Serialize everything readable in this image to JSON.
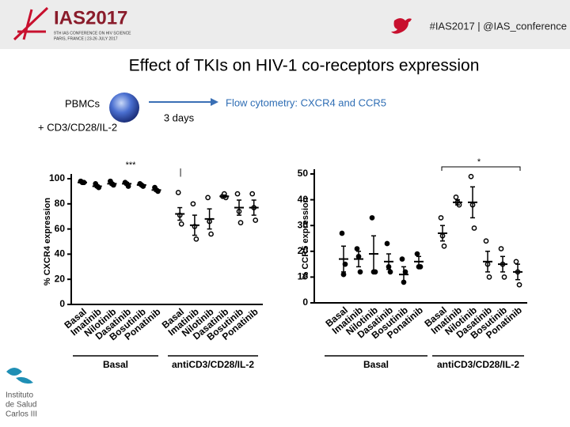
{
  "slide": {
    "logo": "IAS2017",
    "logo_line1": "9TH IAS CONFERENCE ON HIV SCIENCE",
    "logo_line2": "PARIS, FRANCE | 23-26 JULY 2017",
    "hashtag": "#IAS2017 | @IAS_conference",
    "title": "Effect of TKIs on HIV-1 co-receptors expression",
    "cells": "PBMCs",
    "stimulus": "+ CD3/CD28/IL-2",
    "duration": "3 days",
    "method": "Flow cytometry: CXCR4 and CCR5",
    "institute": [
      "Instituto",
      "de Salud",
      "Carlos III"
    ]
  },
  "chart_data": [
    {
      "type": "dot",
      "y_label": "% CXCR4 expression",
      "categories": [
        "Basal",
        "Imatinib",
        "Nilotinib",
        "Dasatinib",
        "Bosutinib",
        "Ponatinib",
        "Basal",
        "Imatinib",
        "Nilotinib",
        "Dasatinib",
        "Bosutinib",
        "Ponatinib"
      ],
      "groups": [
        "Basal",
        "antiCD3/CD28/IL-2"
      ],
      "points": [
        [
          98,
          97,
          97
        ],
        [
          96,
          94,
          93
        ],
        [
          98,
          96,
          95
        ],
        [
          97,
          96,
          94
        ],
        [
          96,
          95,
          94
        ],
        [
          93,
          91,
          90
        ],
        [
          89,
          71,
          64
        ],
        [
          80,
          62,
          52
        ],
        [
          85,
          66,
          56
        ],
        [
          86,
          88,
          85
        ],
        [
          88,
          74,
          65
        ],
        [
          88,
          77,
          67
        ]
      ],
      "mean": [
        97,
        94,
        96,
        96,
        95,
        91,
        72,
        63,
        68,
        86,
        77,
        77
      ],
      "error": [
        0.5,
        1,
        1,
        1,
        0.5,
        1,
        5,
        8,
        8,
        1,
        6,
        6
      ],
      "annotations": [
        "***",
        "|"
      ],
      "ylim": [
        0,
        100
      ],
      "yticks": [
        0,
        20,
        40,
        60,
        80,
        100
      ]
    },
    {
      "type": "dot",
      "y_label": "% CCR5 expression",
      "categories": [
        "Basal",
        "Imatinib",
        "Nilotinib",
        "Dasatinib",
        "Bosutinib",
        "Ponatinib",
        "Basal",
        "Imatinib",
        "Nilotinib",
        "Dasatinib",
        "Bosutinib",
        "Ponatinib"
      ],
      "groups": [
        "Basal",
        "antiCD3/CD28/IL-2"
      ],
      "points": [
        [
          27,
          11,
          15
        ],
        [
          21,
          18,
          12
        ],
        [
          33,
          12,
          12
        ],
        [
          23,
          14,
          12
        ],
        [
          17,
          8,
          12
        ],
        [
          19,
          14,
          14
        ],
        [
          33,
          26,
          22
        ],
        [
          41,
          39,
          38
        ],
        [
          49,
          38,
          29
        ],
        [
          24,
          15,
          10
        ],
        [
          21,
          15,
          10
        ],
        [
          16,
          12,
          7
        ]
      ],
      "mean": [
        17,
        17,
        19,
        16,
        11,
        16,
        27,
        39,
        39,
        16,
        15,
        12
      ],
      "error": [
        5,
        3,
        7,
        3,
        3,
        2,
        3,
        1,
        6,
        4,
        3,
        3
      ],
      "annotations": [
        "*"
      ],
      "ylim": [
        0,
        50
      ],
      "yticks": [
        0,
        10,
        20,
        30,
        40,
        50
      ]
    }
  ]
}
